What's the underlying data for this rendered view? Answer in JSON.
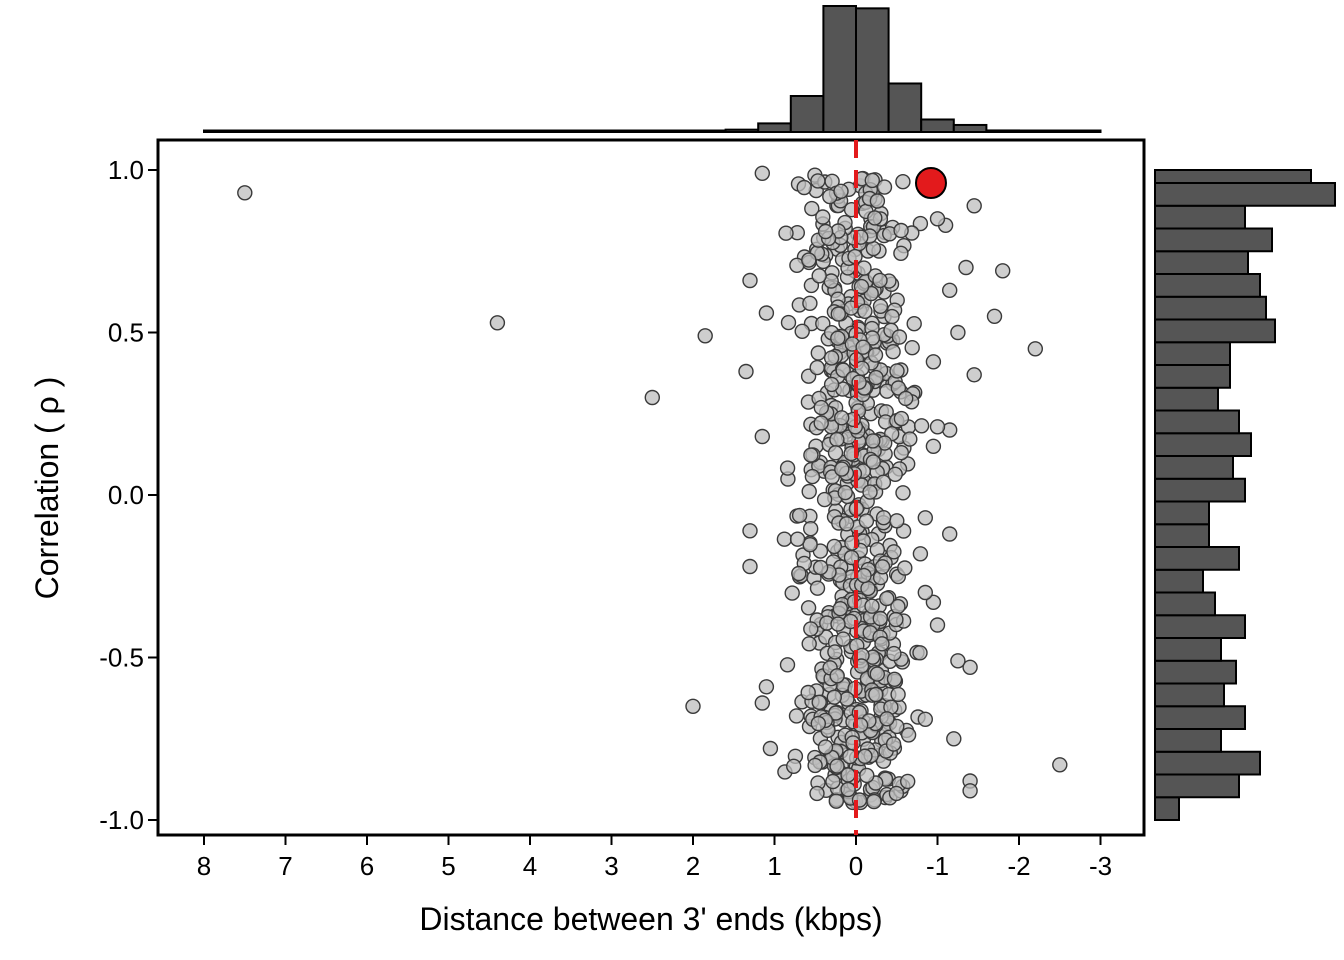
{
  "chart_data": {
    "type": "scatter",
    "xlabel": "Distance between 3' ends (kbps)",
    "ylabel": "Correlation ( ρ )",
    "x_reversed": true,
    "xlim": [
      8.55,
      -3.55
    ],
    "ylim": [
      -1.05,
      1.09
    ],
    "x_ticks": [
      8,
      7,
      6,
      5,
      4,
      3,
      2,
      1,
      0,
      -1,
      -2,
      -3
    ],
    "x_tick_labels": [
      "8",
      "7",
      "6",
      "5",
      "4",
      "3",
      "2",
      "1",
      "0",
      "-1",
      "-2",
      "-3"
    ],
    "y_ticks": [
      1.0,
      0.5,
      0.0,
      -0.5,
      -1.0
    ],
    "y_tick_labels": [
      "1.0",
      "0.5",
      "0.0",
      "-0.5",
      "-1.0"
    ],
    "reference_line": {
      "x": 0,
      "style": "dashed",
      "color": "#e31a1c"
    },
    "highlight_point": {
      "x": -0.92,
      "y": 0.96,
      "color": "#e31a1c"
    },
    "outlier_points": [
      {
        "x": 7.5,
        "y": 0.93
      },
      {
        "x": 4.4,
        "y": 0.53
      },
      {
        "x": 2.5,
        "y": 0.3
      },
      {
        "x": 1.85,
        "y": 0.49
      },
      {
        "x": 2.0,
        "y": -0.65
      },
      {
        "x": 1.35,
        "y": 0.38
      },
      {
        "x": 1.15,
        "y": 0.99
      },
      {
        "x": 1.3,
        "y": 0.66
      },
      {
        "x": 1.1,
        "y": 0.56
      },
      {
        "x": 1.15,
        "y": 0.18
      },
      {
        "x": 1.3,
        "y": -0.11
      },
      {
        "x": 1.3,
        "y": -0.22
      },
      {
        "x": 1.1,
        "y": -0.59
      },
      {
        "x": 1.15,
        "y": -0.64
      },
      {
        "x": 1.05,
        "y": -0.78
      },
      {
        "x": -1.8,
        "y": 0.69
      },
      {
        "x": -2.2,
        "y": 0.45
      },
      {
        "x": -1.7,
        "y": 0.55
      },
      {
        "x": -1.45,
        "y": 0.37
      },
      {
        "x": -1.45,
        "y": 0.89
      },
      {
        "x": -1.35,
        "y": 0.7
      },
      {
        "x": -1.4,
        "y": -0.53
      },
      {
        "x": -1.4,
        "y": -0.88
      },
      {
        "x": -1.4,
        "y": -0.91
      },
      {
        "x": -2.5,
        "y": -0.83
      },
      {
        "x": -1.25,
        "y": -0.51
      },
      {
        "x": -1.2,
        "y": -0.75
      },
      {
        "x": -1.15,
        "y": 0.2
      },
      {
        "x": -1.15,
        "y": -0.12
      },
      {
        "x": -1.1,
        "y": 0.83
      },
      {
        "x": -1.0,
        "y": 0.85
      },
      {
        "x": -1.0,
        "y": 0.21
      },
      {
        "x": -1.0,
        "y": -0.4
      },
      {
        "x": -0.95,
        "y": -0.33
      },
      {
        "x": -0.95,
        "y": 0.41
      },
      {
        "x": -0.95,
        "y": 0.15
      },
      {
        "x": -0.85,
        "y": -0.07
      },
      {
        "x": -0.85,
        "y": -0.69
      },
      {
        "x": -0.85,
        "y": -0.3
      },
      {
        "x": -1.15,
        "y": 0.63
      },
      {
        "x": -1.25,
        "y": 0.5
      }
    ],
    "cluster": {
      "count": 720,
      "x_center": 0.0,
      "x_spread": 0.35,
      "y_range": [
        -0.95,
        0.99
      ]
    },
    "top_histogram": {
      "bin_edges": [
        8,
        7.6,
        7.2,
        6.8,
        6.4,
        6.0,
        5.6,
        5.2,
        4.8,
        4.4,
        4.0,
        3.6,
        3.2,
        2.8,
        2.4,
        2.0,
        1.6,
        1.2,
        0.8,
        0.4,
        0.0,
        -0.4,
        -0.8,
        -1.2,
        -1.6,
        -2.0,
        -2.4,
        -2.8,
        -3.0
      ],
      "counts": [
        1,
        2,
        1,
        1,
        1,
        1,
        1,
        1,
        1,
        1,
        1,
        1,
        1,
        2,
        2,
        3,
        6,
        22,
        92,
        322,
        316,
        124,
        32,
        18,
        4,
        2,
        1,
        1
      ]
    },
    "right_histogram": {
      "bin_edges": [
        -1.0,
        -0.93,
        -0.86,
        -0.79,
        -0.72,
        -0.65,
        -0.58,
        -0.51,
        -0.44,
        -0.37,
        -0.3,
        -0.23,
        -0.16,
        -0.09,
        -0.02,
        0.05,
        0.12,
        0.19,
        0.26,
        0.33,
        0.4,
        0.47,
        0.54,
        0.61,
        0.68,
        0.75,
        0.82,
        0.89,
        0.96,
        1.0
      ],
      "counts": [
        8,
        28,
        35,
        22,
        30,
        23,
        27,
        22,
        30,
        20,
        16,
        28,
        18,
        18,
        30,
        26,
        32,
        28,
        21,
        25,
        25,
        40,
        37,
        35,
        31,
        39,
        30,
        60,
        52
      ]
    }
  }
}
